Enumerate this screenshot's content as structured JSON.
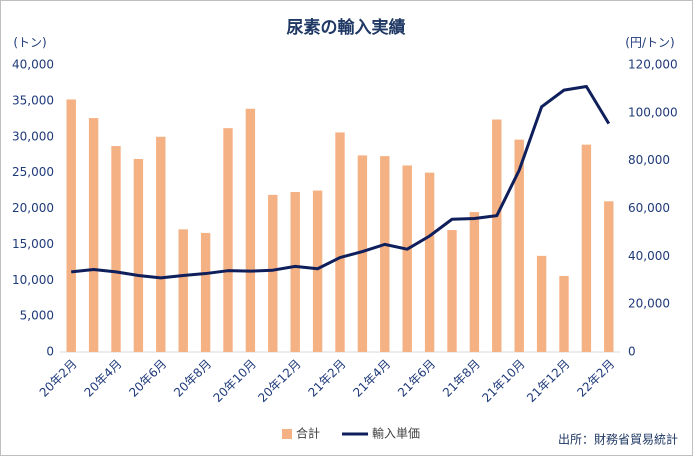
{
  "chart_data": {
    "type": "bar_line",
    "title": "尿素の輸入実績",
    "y_label": "(トン)",
    "y2_label": "(円/トン)",
    "source": "出所：財務省貿易統計",
    "categories": [
      "20年2月",
      null,
      "20年4月",
      null,
      "20年6月",
      null,
      "20年8月",
      null,
      "20年10月",
      null,
      "20年12月",
      null,
      "21年2月",
      null,
      "21年4月",
      null,
      "21年6月",
      null,
      "21年8月",
      null,
      "21年10月",
      null,
      "21年12月",
      null,
      "22年2月"
    ],
    "series": [
      {
        "name": "合計",
        "type": "bar",
        "color": "#f4b183",
        "axis": "y",
        "values": [
          35200,
          32600,
          28700,
          26900,
          30000,
          17100,
          16600,
          31200,
          33900,
          21900,
          22300,
          22500,
          30600,
          27400,
          27300,
          26000,
          25000,
          17000,
          19500,
          32400,
          29600,
          13400,
          10600,
          28900,
          21000
        ]
      },
      {
        "name": "輸入単価",
        "type": "line",
        "color": "#0f1f5c",
        "axis": "y2",
        "values": [
          33500,
          34500,
          33500,
          32000,
          31000,
          32000,
          32800,
          34000,
          33800,
          34200,
          35800,
          34800,
          39500,
          42000,
          45000,
          43000,
          48500,
          55500,
          55800,
          57000,
          76000,
          102500,
          109500,
          111000,
          95500
        ]
      }
    ],
    "ylim": [
      0,
      40000
    ],
    "yticks": [
      0,
      {
        "value": 5000,
        "label": "5,000"
      },
      {
        "value": 10000,
        "label": "10,000"
      },
      {
        "value": 15000,
        "label": "15,000"
      },
      {
        "value": 20000,
        "label": "20,000"
      },
      {
        "value": 25000,
        "label": "25,000"
      },
      {
        "value": 30000,
        "label": "30,000"
      },
      {
        "value": 35000,
        "label": "35,000"
      },
      {
        "value": 40000,
        "label": "40,000"
      }
    ],
    "y2lim": [
      0,
      120000
    ],
    "y2ticks": [
      0,
      {
        "value": 20000,
        "label": "20,000"
      },
      {
        "value": 40000,
        "label": "40,000"
      },
      {
        "value": 60000,
        "label": "60,000"
      },
      {
        "value": 80000,
        "label": "80,000"
      },
      {
        "value": 100000,
        "label": "100,000"
      },
      {
        "value": 120000,
        "label": "120,000"
      }
    ],
    "grid": false,
    "legend": "bottom"
  }
}
